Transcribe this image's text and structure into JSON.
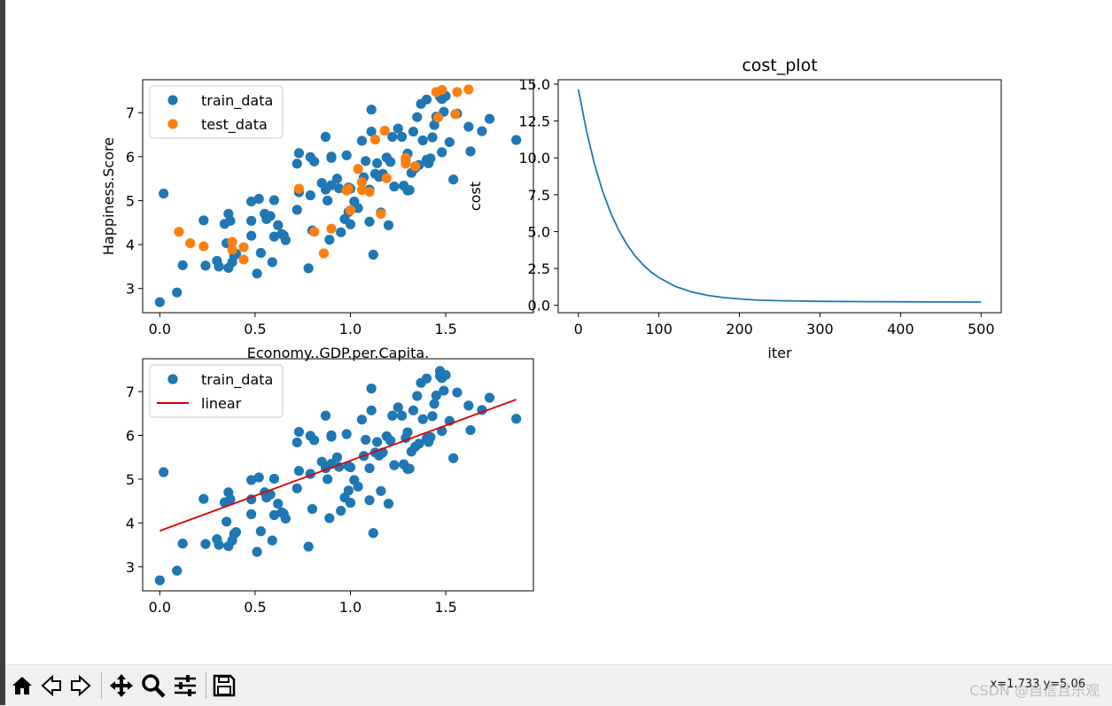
{
  "colors": {
    "train": "#1f77b4",
    "test": "#ff7f0e",
    "linear": "#e00000",
    "cost": "#1f77b4"
  },
  "toolbar": {
    "buttons": [
      {
        "name": "home-icon"
      },
      {
        "name": "back-icon"
      },
      {
        "name": "forward-icon"
      },
      {
        "name": "pan-icon"
      },
      {
        "name": "zoom-icon"
      },
      {
        "name": "configure-subplots-icon"
      },
      {
        "name": "save-icon"
      }
    ],
    "coords": "x=1.733  y=5.06"
  },
  "watermark": "CSDN @自信且乐观",
  "chart_data": [
    {
      "id": "scatter-train-test",
      "type": "scatter",
      "title": "",
      "xlabel": "Economy..GDP.per.Capita.",
      "ylabel": "Happiness.Score",
      "xlim": [
        -0.09,
        1.96
      ],
      "ylim": [
        2.45,
        7.75
      ],
      "xticks": [
        0,
        0.5,
        1,
        1.5
      ],
      "xtick_labels": [
        "0.0",
        "0.5",
        "1.0",
        "1.5"
      ],
      "yticks": [
        3,
        4,
        5,
        6,
        7
      ],
      "ytick_labels": [
        "3",
        "4",
        "5",
        "6",
        "7"
      ],
      "legend": {
        "position": "top-left",
        "entries": [
          "train_data",
          "test_data"
        ]
      },
      "series": [
        {
          "name": "train_data",
          "marker": "circle",
          "points": [
            [
              0.0,
              2.69
            ],
            [
              0.02,
              5.16
            ],
            [
              0.09,
              2.91
            ],
            [
              0.12,
              3.53
            ],
            [
              0.23,
              4.55
            ],
            [
              0.24,
              3.52
            ],
            [
              0.3,
              3.63
            ],
            [
              0.31,
              3.5
            ],
            [
              0.34,
              4.47
            ],
            [
              0.35,
              4.03
            ],
            [
              0.36,
              4.7
            ],
            [
              0.36,
              3.47
            ],
            [
              0.37,
              4.54
            ],
            [
              0.38,
              3.6
            ],
            [
              0.39,
              3.75
            ],
            [
              0.4,
              3.79
            ],
            [
              0.48,
              4.2
            ],
            [
              0.48,
              4.54
            ],
            [
              0.48,
              4.98
            ],
            [
              0.51,
              3.34
            ],
            [
              0.52,
              5.04
            ],
            [
              0.53,
              3.81
            ],
            [
              0.55,
              4.7
            ],
            [
              0.56,
              4.58
            ],
            [
              0.58,
              4.65
            ],
            [
              0.59,
              3.6
            ],
            [
              0.6,
              5.01
            ],
            [
              0.6,
              4.18
            ],
            [
              0.62,
              4.44
            ],
            [
              0.64,
              4.24
            ],
            [
              0.65,
              4.21
            ],
            [
              0.66,
              4.1
            ],
            [
              0.72,
              5.84
            ],
            [
              0.72,
              4.79
            ],
            [
              0.73,
              6.08
            ],
            [
              0.73,
              5.19
            ],
            [
              0.78,
              3.46
            ],
            [
              0.79,
              5.12
            ],
            [
              0.79,
              5.99
            ],
            [
              0.8,
              4.32
            ],
            [
              0.81,
              5.89
            ],
            [
              0.85,
              5.4
            ],
            [
              0.87,
              6.45
            ],
            [
              0.87,
              5.25
            ],
            [
              0.88,
              5.0
            ],
            [
              0.89,
              4.11
            ],
            [
              0.9,
              5.97
            ],
            [
              0.9,
              6.0
            ],
            [
              0.9,
              5.35
            ],
            [
              0.93,
              5.5
            ],
            [
              0.94,
              5.28
            ],
            [
              0.95,
              4.28
            ],
            [
              0.97,
              4.58
            ],
            [
              0.98,
              6.03
            ],
            [
              0.99,
              4.74
            ],
            [
              0.99,
              5.3
            ],
            [
              1.0,
              4.46
            ],
            [
              1.0,
              5.27
            ],
            [
              1.02,
              4.98
            ],
            [
              1.04,
              4.83
            ],
            [
              1.06,
              6.36
            ],
            [
              1.07,
              5.53
            ],
            [
              1.08,
              5.9
            ],
            [
              1.1,
              5.25
            ],
            [
              1.1,
              4.52
            ],
            [
              1.11,
              7.07
            ],
            [
              1.11,
              6.57
            ],
            [
              1.12,
              3.77
            ],
            [
              1.13,
              5.61
            ],
            [
              1.14,
              5.85
            ],
            [
              1.15,
              5.54
            ],
            [
              1.16,
              4.73
            ],
            [
              1.17,
              5.61
            ],
            [
              1.19,
              5.98
            ],
            [
              1.2,
              4.44
            ],
            [
              1.21,
              5.88
            ],
            [
              1.22,
              6.45
            ],
            [
              1.23,
              5.32
            ],
            [
              1.25,
              6.64
            ],
            [
              1.27,
              6.45
            ],
            [
              1.28,
              5.34
            ],
            [
              1.29,
              5.94
            ],
            [
              1.3,
              5.23
            ],
            [
              1.3,
              6.07
            ],
            [
              1.31,
              5.24
            ],
            [
              1.32,
              5.63
            ],
            [
              1.33,
              6.57
            ],
            [
              1.34,
              5.74
            ],
            [
              1.35,
              6.9
            ],
            [
              1.36,
              5.81
            ],
            [
              1.37,
              7.2
            ],
            [
              1.38,
              6.37
            ],
            [
              1.4,
              7.3
            ],
            [
              1.4,
              5.93
            ],
            [
              1.41,
              5.85
            ],
            [
              1.42,
              5.96
            ],
            [
              1.43,
              6.44
            ],
            [
              1.44,
              6.72
            ],
            [
              1.45,
              6.91
            ],
            [
              1.47,
              7.36
            ],
            [
              1.47,
              7.47
            ],
            [
              1.48,
              7.31
            ],
            [
              1.48,
              6.1
            ],
            [
              1.49,
              7.02
            ],
            [
              1.5,
              7.38
            ],
            [
              1.52,
              6.33
            ],
            [
              1.54,
              5.48
            ],
            [
              1.56,
              6.98
            ],
            [
              1.62,
              6.68
            ],
            [
              1.63,
              6.12
            ],
            [
              1.69,
              6.58
            ],
            [
              1.73,
              6.86
            ],
            [
              1.87,
              6.38
            ]
          ]
        },
        {
          "name": "test_data",
          "marker": "circle",
          "points": [
            [
              0.1,
              4.29
            ],
            [
              0.16,
              4.03
            ],
            [
              0.23,
              3.96
            ],
            [
              0.38,
              4.06
            ],
            [
              0.38,
              3.88
            ],
            [
              0.44,
              3.66
            ],
            [
              0.44,
              3.94
            ],
            [
              0.73,
              5.27
            ],
            [
              0.81,
              4.29
            ],
            [
              0.86,
              3.8
            ],
            [
              0.9,
              4.36
            ],
            [
              0.98,
              5.23
            ],
            [
              0.99,
              5.27
            ],
            [
              1.0,
              4.78
            ],
            [
              1.04,
              5.72
            ],
            [
              1.06,
              5.42
            ],
            [
              1.06,
              5.24
            ],
            [
              1.1,
              5.2
            ],
            [
              1.13,
              6.39
            ],
            [
              1.16,
              4.7
            ],
            [
              1.18,
              6.59
            ],
            [
              1.19,
              5.51
            ],
            [
              1.29,
              5.84
            ],
            [
              1.29,
              5.97
            ],
            [
              1.34,
              5.78
            ],
            [
              1.45,
              7.47
            ],
            [
              1.46,
              6.89
            ],
            [
              1.48,
              7.52
            ],
            [
              1.55,
              6.97
            ],
            [
              1.56,
              7.47
            ],
            [
              1.62,
              7.53
            ]
          ]
        }
      ]
    },
    {
      "id": "cost-plot",
      "type": "line",
      "title": "cost_plot",
      "xlabel": "iter",
      "ylabel": "cost",
      "xlim": [
        -25,
        525
      ],
      "ylim": [
        -0.5,
        15.3
      ],
      "xticks": [
        0,
        100,
        200,
        300,
        400,
        500
      ],
      "xtick_labels": [
        "0",
        "100",
        "200",
        "300",
        "400",
        "500"
      ],
      "yticks": [
        0,
        2.5,
        5,
        7.5,
        10,
        12.5,
        15
      ],
      "ytick_labels": [
        "0.0",
        "2.5",
        "5.0",
        "7.5",
        "10.0",
        "12.5",
        "15.0"
      ],
      "series": [
        {
          "name": "cost",
          "x": [
            0,
            10,
            20,
            30,
            40,
            50,
            60,
            70,
            80,
            90,
            100,
            120,
            140,
            160,
            180,
            200,
            225,
            250,
            300,
            350,
            400,
            450,
            500
          ],
          "y": [
            14.65,
            11.85,
            9.58,
            7.76,
            6.29,
            5.11,
            4.15,
            3.38,
            2.77,
            2.27,
            1.88,
            1.29,
            0.92,
            0.68,
            0.53,
            0.43,
            0.35,
            0.31,
            0.27,
            0.25,
            0.24,
            0.23,
            0.22
          ]
        }
      ]
    },
    {
      "id": "scatter-linear-fit",
      "type": "scatter",
      "title": "",
      "xlabel": "",
      "ylabel": "",
      "xlim": [
        -0.09,
        1.96
      ],
      "ylim": [
        2.45,
        7.75
      ],
      "xticks": [
        0,
        0.5,
        1,
        1.5
      ],
      "xtick_labels": [
        "0.0",
        "0.5",
        "1.0",
        "1.5"
      ],
      "yticks": [
        3,
        4,
        5,
        6,
        7
      ],
      "ytick_labels": [
        "3",
        "4",
        "5",
        "6",
        "7"
      ],
      "legend": {
        "position": "top-left",
        "entries": [
          "train_data",
          "linear"
        ]
      },
      "series": [
        {
          "name": "train_data",
          "marker": "circle",
          "same_as": "train_data"
        },
        {
          "name": "linear",
          "type": "line",
          "x": [
            0.0,
            1.87
          ],
          "y": [
            3.82,
            6.82
          ]
        }
      ]
    }
  ]
}
